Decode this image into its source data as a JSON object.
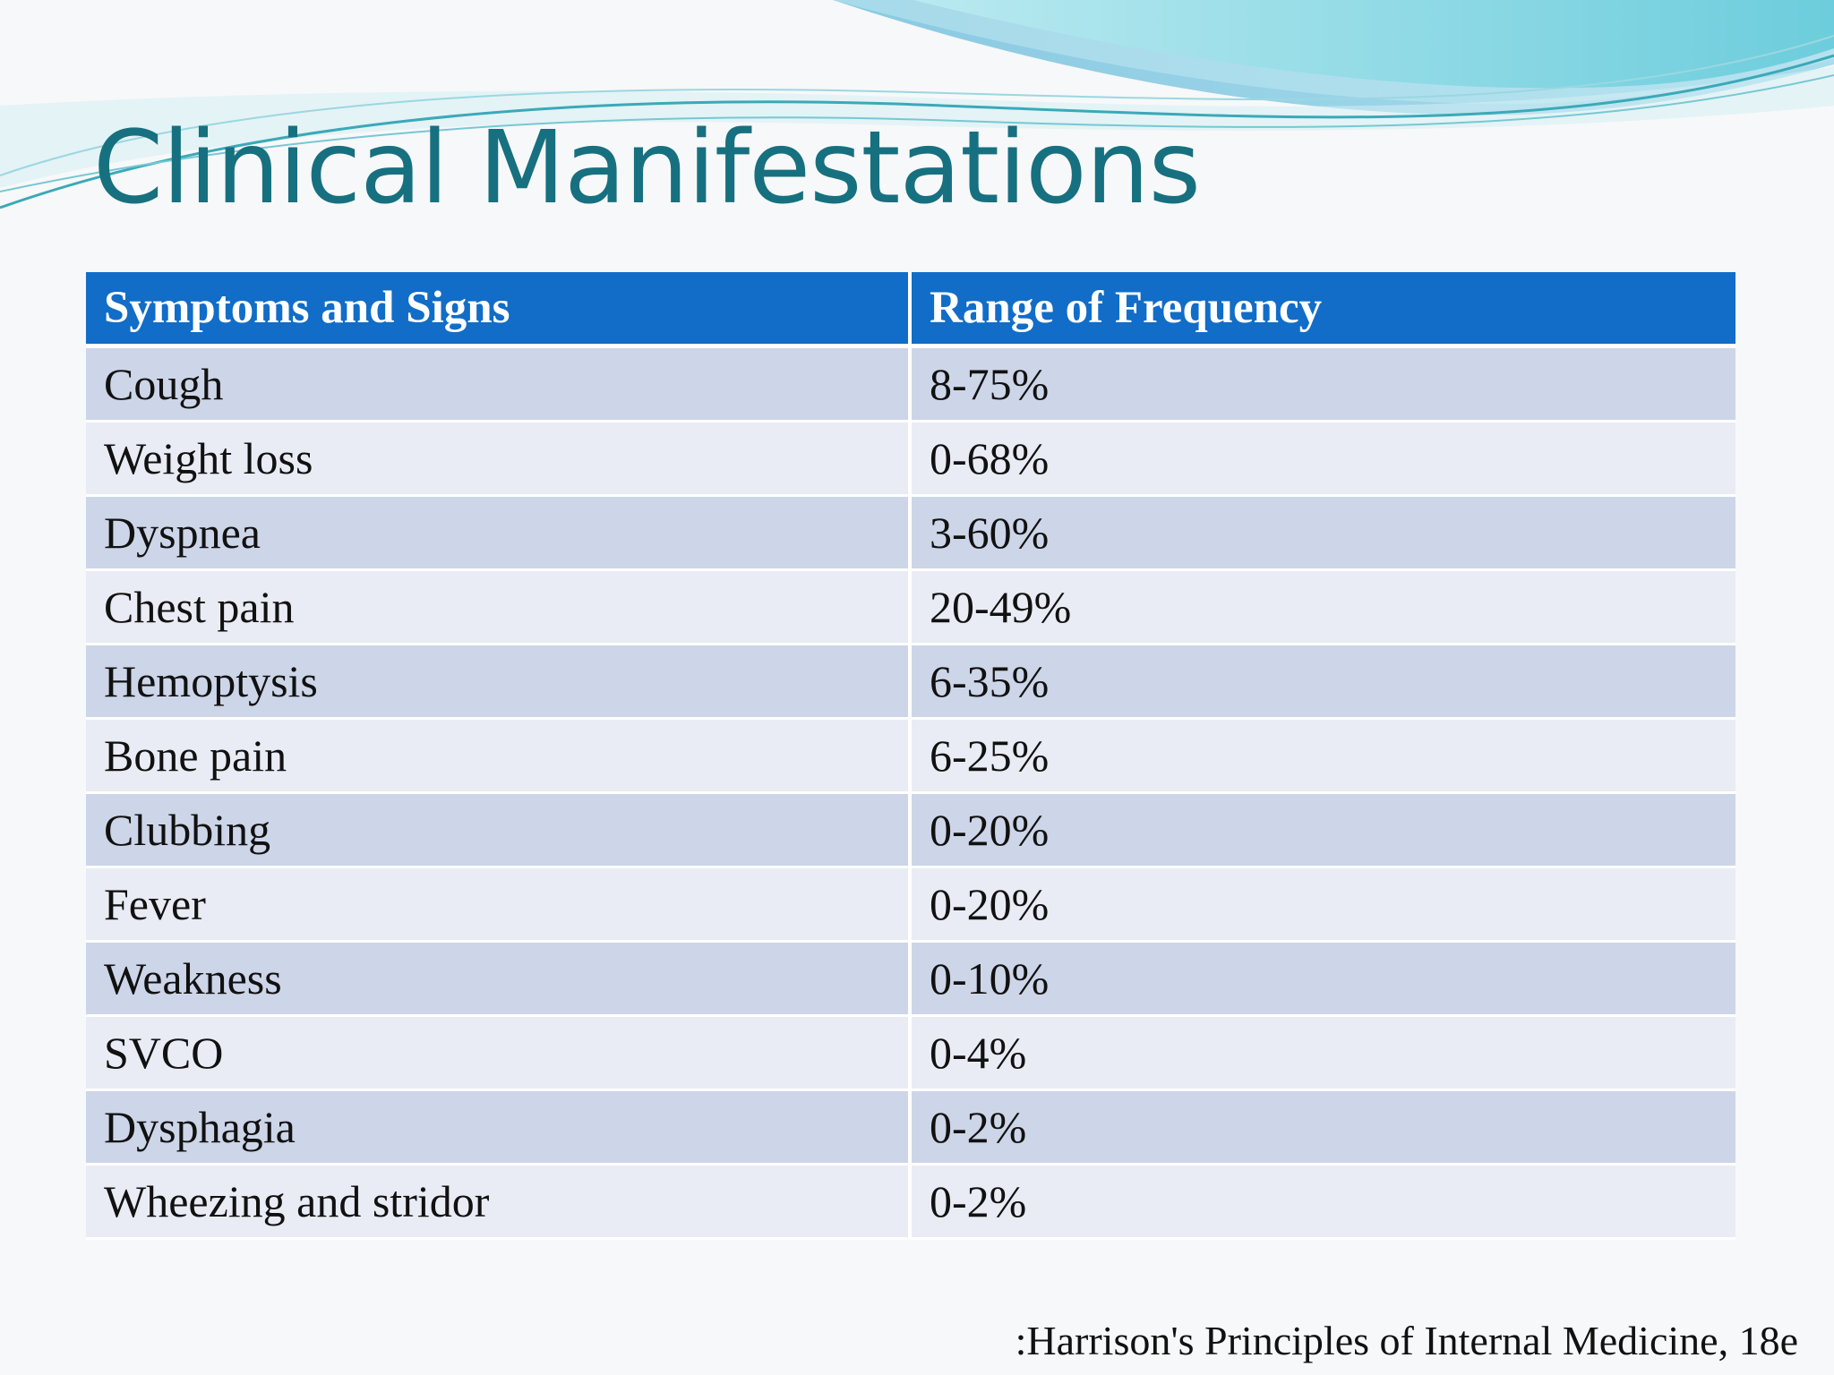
{
  "slide": {
    "title": "Clinical Manifestations",
    "theme_colors": {
      "title": "#17707f",
      "header_fill": "#116dc7",
      "row_band_dark": "#cdd5e8",
      "row_band_light": "#e9ecf4",
      "wave_light": "#8fd3e6",
      "wave_teal": "#3bb9c9"
    }
  },
  "table": {
    "headers": [
      "Symptoms  and Signs",
      "Range of Frequency"
    ],
    "rows": [
      {
        "symptom": "Cough",
        "frequency": "8-75%"
      },
      {
        "symptom": "Weight loss",
        "frequency": "0-68%"
      },
      {
        "symptom": "Dyspnea",
        "frequency": "3-60%"
      },
      {
        "symptom": "Chest pain",
        "frequency": "20-49%"
      },
      {
        "symptom": "Hemoptysis",
        "frequency": "6-35%"
      },
      {
        "symptom": "Bone pain",
        "frequency": "6-25%"
      },
      {
        "symptom": "Clubbing",
        "frequency": "0-20%"
      },
      {
        "symptom": "Fever",
        "frequency": "0-20%"
      },
      {
        "symptom": "Weakness",
        "frequency": "0-10%"
      },
      {
        "symptom": "SVCO",
        "frequency": "0-4%"
      },
      {
        "symptom": "Dysphagia",
        "frequency": "0-2%"
      },
      {
        "symptom": "Wheezing and stridor",
        "frequency": "0-2%"
      }
    ]
  },
  "citation": ":Harrison's Principles of Internal Medicine, 18e"
}
